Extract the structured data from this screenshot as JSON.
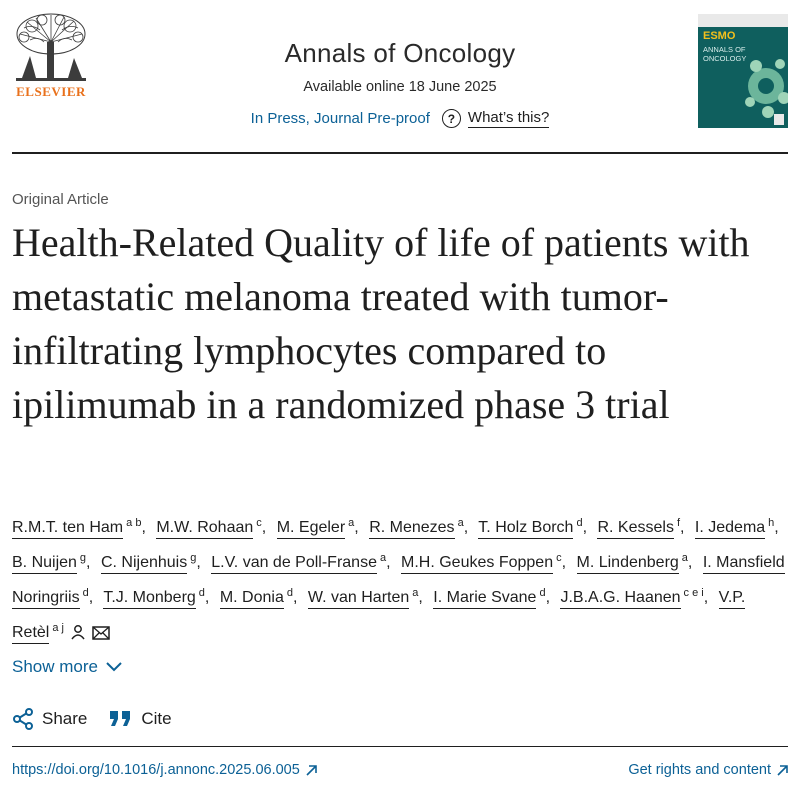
{
  "header": {
    "publisher": "ELSEVIER",
    "journal_title": "Annals of Oncology",
    "available": "Available online 18 June 2025",
    "status_link": "In Press, Journal Pre-proof",
    "whats_this": "What’s this?",
    "cover": {
      "brand": "ESMO",
      "journal": "ANNALS OF ONCOLOGY"
    }
  },
  "article": {
    "type": "Original Article",
    "title": "Health-Related Quality of life of patients with metastatic melanoma treated with tumor-infiltrating lymphocytes compared to ipilimumab in a randomized phase 3 trial",
    "authors": [
      {
        "name": "R.M.T. ten Ham",
        "aff": "a b"
      },
      {
        "name": "M.W. Rohaan",
        "aff": "c"
      },
      {
        "name": "M. Egeler",
        "aff": "a"
      },
      {
        "name": "R. Menezes",
        "aff": "a"
      },
      {
        "name": "T. Holz Borch",
        "aff": "d"
      },
      {
        "name": "R. Kessels",
        "aff": "f"
      },
      {
        "name": "I. Jedema",
        "aff": "h"
      },
      {
        "name": "B. Nuijen",
        "aff": "g"
      },
      {
        "name": "C. Nijenhuis",
        "aff": "g"
      },
      {
        "name": "L.V. van de Poll-Franse",
        "aff": "a"
      },
      {
        "name": "M.H. Geukes Foppen",
        "aff": "c"
      },
      {
        "name": "M. Lindenberg",
        "aff": "a"
      },
      {
        "name": "I. Mansfield Noringriis",
        "aff": "d"
      },
      {
        "name": "T.J. Monberg",
        "aff": "d"
      },
      {
        "name": "M. Donia",
        "aff": "d"
      },
      {
        "name": "W. van Harten",
        "aff": "a"
      },
      {
        "name": "I. Marie Svane",
        "aff": "d"
      },
      {
        "name": "J.B.A.G. Haanen",
        "aff": "c e i"
      },
      {
        "name": "V.P. Retèl",
        "aff": "a j"
      }
    ]
  },
  "actions": {
    "show_more": "Show more",
    "share": "Share",
    "cite": "Cite"
  },
  "footer": {
    "doi": "https://doi.org/10.1016/j.annonc.2025.06.005",
    "rights": "Get rights and content"
  },
  "colors": {
    "link": "#0c6196",
    "publisher": "#e9711c",
    "text": "#1f1f1f"
  }
}
